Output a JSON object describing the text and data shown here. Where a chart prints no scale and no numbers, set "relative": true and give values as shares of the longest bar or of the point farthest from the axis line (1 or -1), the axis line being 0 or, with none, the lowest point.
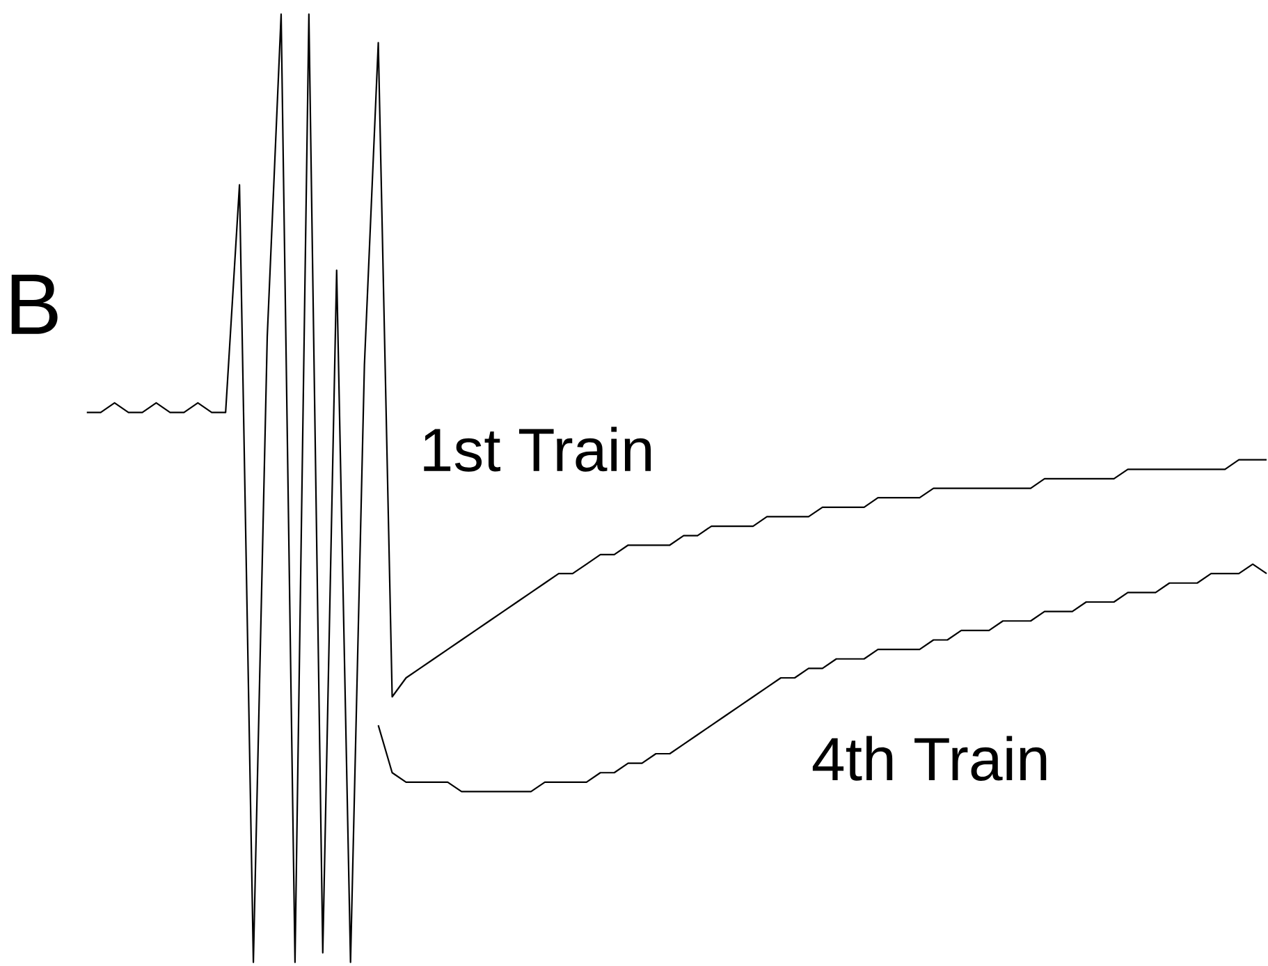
{
  "chart_data": {
    "type": "line",
    "title": "B",
    "relative": true,
    "categories": [
      null,
      null,
      null,
      null,
      null,
      null,
      null,
      null,
      null,
      null,
      null,
      null,
      null,
      null,
      null,
      null,
      null,
      null,
      null,
      null,
      null,
      null,
      null,
      null,
      null,
      null,
      null,
      null,
      null,
      null,
      null,
      null,
      null,
      null,
      null,
      null,
      null,
      null,
      null,
      null,
      null,
      null,
      null,
      null,
      null,
      null,
      null,
      null,
      null,
      null,
      null,
      null,
      null,
      null,
      null,
      null,
      null,
      null,
      null,
      null,
      null,
      null,
      null,
      null,
      null,
      null,
      null,
      null,
      null,
      null,
      null,
      null,
      null,
      null,
      null,
      null,
      null,
      null,
      null,
      null,
      null,
      null,
      null,
      null,
      null,
      null
    ],
    "series": [
      {
        "name": "1st Train",
        "color": "#000000",
        "values": [
          0.58,
          0.58,
          0.59,
          0.58,
          0.58,
          0.59,
          0.58,
          0.58,
          0.59,
          0.58,
          0.58,
          0.82,
          0,
          0.66,
          1,
          0,
          1,
          0.01,
          0.73,
          0,
          0.63,
          0.97,
          0.28,
          0.3,
          0.31,
          0.32,
          0.33,
          0.34,
          0.35,
          0.36,
          0.37,
          0.38,
          0.39,
          0.4,
          0.41,
          0.41,
          0.42,
          0.43,
          0.43,
          0.44,
          0.44,
          0.44,
          0.44,
          0.45,
          0.45,
          0.46,
          0.46,
          0.46,
          0.46,
          0.47,
          0.47,
          0.47,
          0.47,
          0.48,
          0.48,
          0.48,
          0.48,
          0.49,
          0.49,
          0.49,
          0.49,
          0.5,
          0.5,
          0.5,
          0.5,
          0.5,
          0.5,
          0.5,
          0.5,
          0.51,
          0.51,
          0.51,
          0.51,
          0.51,
          0.51,
          0.52,
          0.52,
          0.52,
          0.52,
          0.52,
          0.52,
          0.52,
          0.52,
          0.53,
          0.53,
          0.53
        ]
      },
      {
        "name": "4th Train",
        "color": "#000000",
        "values": [
          null,
          null,
          null,
          null,
          null,
          null,
          null,
          null,
          null,
          null,
          null,
          null,
          null,
          null,
          null,
          null,
          null,
          null,
          null,
          null,
          null,
          0.25,
          0.2,
          0.19,
          0.19,
          0.19,
          0.19,
          0.18,
          0.18,
          0.18,
          0.18,
          0.18,
          0.18,
          0.19,
          0.19,
          0.19,
          0.19,
          0.2,
          0.2,
          0.21,
          0.21,
          0.22,
          0.22,
          0.23,
          0.24,
          0.25,
          0.26,
          0.27,
          0.28,
          0.29,
          0.3,
          0.3,
          0.31,
          0.31,
          0.32,
          0.32,
          0.32,
          0.33,
          0.33,
          0.33,
          0.33,
          0.34,
          0.34,
          0.35,
          0.35,
          0.35,
          0.36,
          0.36,
          0.36,
          0.37,
          0.37,
          0.37,
          0.38,
          0.38,
          0.38,
          0.39,
          0.39,
          0.39,
          0.4,
          0.4,
          0.4,
          0.41,
          0.41,
          0.41,
          0.42,
          0.41
        ]
      }
    ]
  }
}
